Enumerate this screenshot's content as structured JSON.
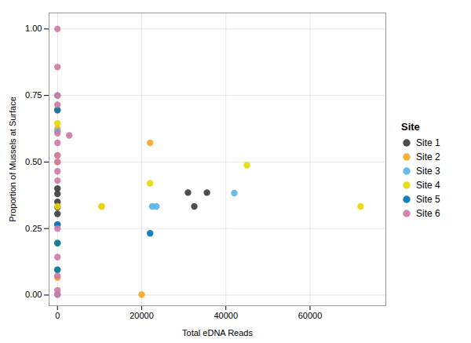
{
  "chart_data": {
    "type": "scatter",
    "xlabel": "Total eDNA Reads",
    "ylabel": "Proportion of Mussels at Surface",
    "xlim": [
      -2000,
      78000
    ],
    "ylim": [
      -0.04,
      1.06
    ],
    "xticks": [
      0,
      20000,
      40000,
      60000
    ],
    "yticks": [
      {
        "value": 0.0,
        "label": "0.00"
      },
      {
        "value": 0.25,
        "label": "0.25"
      },
      {
        "value": 0.5,
        "label": "0.50"
      },
      {
        "value": 0.75,
        "label": "0.75"
      },
      {
        "value": 1.0,
        "label": "1.00"
      }
    ],
    "grid": true,
    "legend": "right",
    "legend_title": "Site",
    "marker": "circle",
    "series": [
      {
        "name": "Site 1",
        "color": "#3B3B3B",
        "x": [
          0,
          0,
          0,
          0,
          0,
          31000,
          35500,
          32500
        ],
        "y": [
          0.4,
          0.38,
          0.35,
          0.33,
          0.305,
          0.385,
          0.385,
          0.333
        ]
      },
      {
        "name": "Site 2",
        "color": "#F5A623",
        "x": [
          0,
          0,
          0,
          0,
          0,
          20000,
          22000,
          10500
        ],
        "y": [
          0.75,
          0.625,
          0.525,
          0.5,
          0.065,
          0.002,
          0.572,
          0.333
        ]
      },
      {
        "name": "Site 3",
        "color": "#56B4E9",
        "x": [
          0,
          0,
          0,
          0,
          0,
          0,
          0,
          22500,
          23500,
          42000
        ],
        "y": [
          0.75,
          0.695,
          0.615,
          0.265,
          0.195,
          0.095,
          0.002,
          0.333,
          0.333,
          0.383
        ]
      },
      {
        "name": "Site 4",
        "color": "#E8D800",
        "x": [
          0,
          0,
          0,
          0,
          0,
          10500,
          22000,
          45000,
          72000
        ],
        "y": [
          0.695,
          0.645,
          0.333,
          0.195,
          0.095,
          0.333,
          0.42,
          0.488,
          0.333
        ]
      },
      {
        "name": "Site 5",
        "color": "#0072B2",
        "x": [
          0,
          0,
          0,
          0,
          22000
        ],
        "y": [
          0.695,
          0.265,
          0.195,
          0.095,
          0.232
        ]
      },
      {
        "name": "Site 6",
        "color": "#CC79A7",
        "x": [
          0,
          0,
          0,
          0,
          0,
          0,
          0,
          0,
          0,
          0,
          0,
          0,
          0,
          0,
          0,
          2800
        ],
        "y": [
          1.0,
          0.857,
          0.75,
          0.715,
          0.608,
          0.572,
          0.525,
          0.5,
          0.465,
          0.43,
          0.25,
          0.143,
          0.072,
          0.018,
          0.002,
          0.6
        ]
      }
    ]
  }
}
